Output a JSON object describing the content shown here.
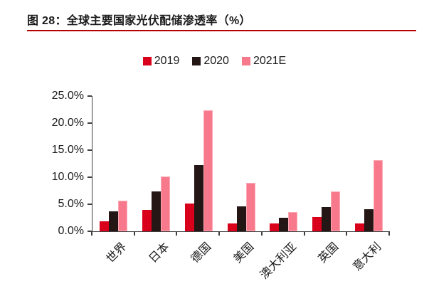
{
  "figure": {
    "title": "图 28：全球主要国家光伏配储渗透率（%）",
    "accent_color": "#b40000"
  },
  "chart_data": {
    "type": "bar",
    "title": "全球主要国家光伏配储渗透率（%）",
    "categories": [
      "世界",
      "日本",
      "德国",
      "美国",
      "澳大利亚",
      "英国",
      "意大利"
    ],
    "series": [
      {
        "name": "2019",
        "color": "#d9001b",
        "values": [
          1.9,
          4.0,
          5.2,
          1.5,
          1.4,
          2.6,
          1.5
        ]
      },
      {
        "name": "2020",
        "color": "#241614",
        "values": [
          3.7,
          7.4,
          12.3,
          4.6,
          2.5,
          4.5,
          4.1
        ]
      },
      {
        "name": "2021E",
        "color": "#f8798b",
        "border_color": "#fcaab6",
        "values": [
          5.6,
          10.1,
          22.4,
          9.0,
          3.5,
          7.4,
          13.1
        ]
      }
    ],
    "ylim": [
      0,
      25
    ],
    "ytick_step": 5,
    "ytick_labels": [
      "0.0%",
      "5.0%",
      "10.0%",
      "15.0%",
      "20.0%",
      "25.0%"
    ],
    "legend_position": "top-center",
    "grid": false,
    "axis_color": "#3f3f3f"
  }
}
